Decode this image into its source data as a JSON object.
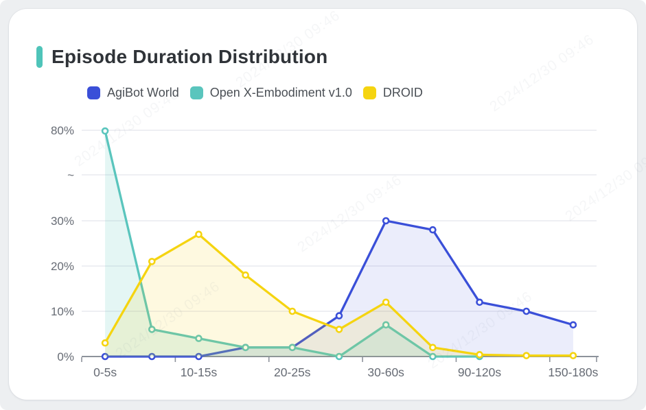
{
  "page": {
    "title": "Episode Duration Distribution"
  },
  "watermark": {
    "text": "2024/12/30 09:46"
  },
  "colors": {
    "accent_bar": "#4fc4b9",
    "background": "#edeff1",
    "card": "#ffffff",
    "axis_line": "#8d929b",
    "gridline": "#e9eaef",
    "axis_label": "#666b74"
  },
  "legend": {
    "items": [
      {
        "label": "AgiBot World",
        "color": "#3a4fd8"
      },
      {
        "label": "Open X-Embodiment v1.0",
        "color": "#5ac5bd"
      },
      {
        "label": "DROID",
        "color": "#f5d410"
      }
    ]
  },
  "chart_data": {
    "type": "line",
    "title": "Episode Duration Distribution",
    "xlabel": "",
    "ylabel": "",
    "x_tick_labels": [
      "0-5s",
      "10-15s",
      "20-25s",
      "30-60s",
      "90-120s",
      "150-180s"
    ],
    "x_label_point_indices": [
      0,
      2,
      4,
      6,
      8,
      10
    ],
    "points_per_series": 11,
    "y_tick_labels": [
      "0%",
      "10%",
      "20%",
      "30%",
      "~",
      "80%"
    ],
    "y_axis_break": {
      "linear_up_to": 30,
      "top_tick_value": 80,
      "break_symbol": "~"
    },
    "grid_on": true,
    "legend_position": "top-left",
    "series": [
      {
        "name": "AgiBot World",
        "color": "#3a4fd8",
        "fill": "rgba(58,79,216,0.10)",
        "values": [
          0,
          0,
          0,
          2,
          2,
          9,
          30,
          28,
          12,
          10,
          7
        ]
      },
      {
        "name": "Open X-Embodiment v1.0",
        "color": "#5ac5bd",
        "fill": "rgba(90,197,189,0.16)",
        "values": [
          79.6,
          6,
          4,
          2,
          2,
          0,
          7,
          0,
          0,
          null,
          null
        ]
      },
      {
        "name": "DROID",
        "color": "#f5d410",
        "fill": "rgba(245,212,16,0.13)",
        "values": [
          3,
          21,
          27,
          18,
          10,
          6,
          12,
          2,
          0.4,
          0.2,
          0.2
        ]
      }
    ]
  }
}
